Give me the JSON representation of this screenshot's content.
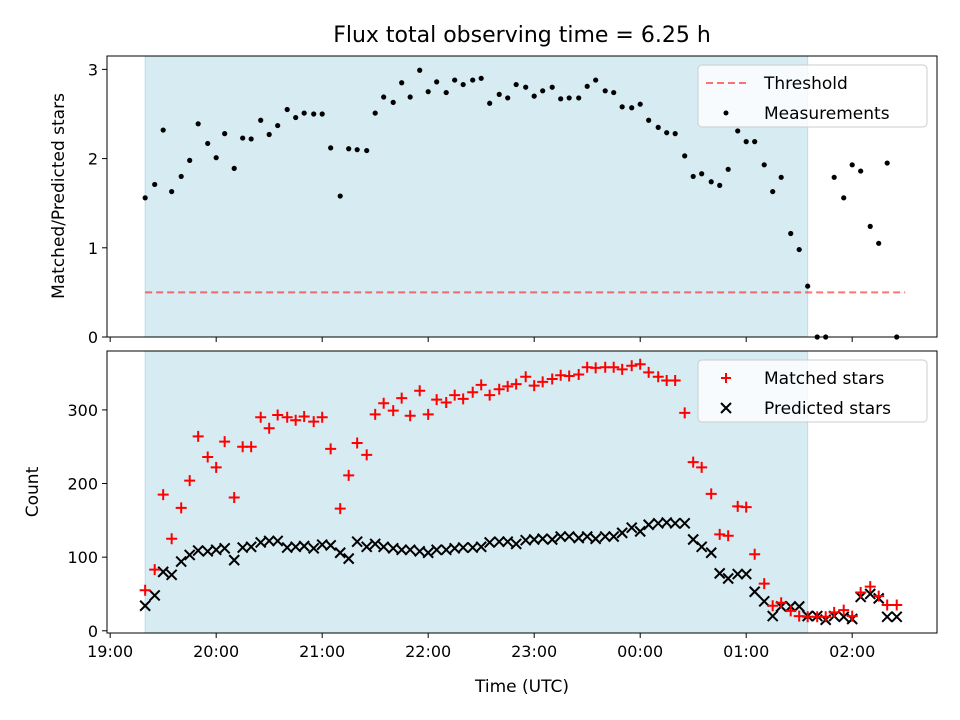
{
  "title": "Flux total observing time = 6.25 h",
  "colors": {
    "shade": "#add8e6",
    "threshold": "#ff0000",
    "measurement": "#000000",
    "matched": "#ff0000",
    "predicted": "#000000"
  },
  "chart_data": [
    {
      "type": "scatter",
      "ylabel": "Matched/Predicted stars",
      "ylim": [
        0,
        3.15
      ],
      "xlim": [
        -0.03,
        7.8
      ],
      "yticks": [
        0,
        1,
        2,
        3
      ],
      "shaded_interval": [
        0.33,
        6.58
      ],
      "legend": [
        "Threshold",
        "Measurements"
      ],
      "legend_position": "top-right",
      "threshold": {
        "name": "Threshold",
        "value": 0.5,
        "x_range": [
          0.33,
          7.5
        ]
      },
      "series": [
        {
          "name": "Measurements",
          "x": [
            0.33,
            0.42,
            0.5,
            0.58,
            0.67,
            0.75,
            0.83,
            0.92,
            1.0,
            1.08,
            1.17,
            1.25,
            1.33,
            1.42,
            1.5,
            1.58,
            1.67,
            1.75,
            1.83,
            1.92,
            2.0,
            2.08,
            2.17,
            2.25,
            2.33,
            2.42,
            2.5,
            2.58,
            2.67,
            2.75,
            2.83,
            2.92,
            3.0,
            3.08,
            3.17,
            3.25,
            3.33,
            3.42,
            3.5,
            3.58,
            3.67,
            3.75,
            3.83,
            3.92,
            4.0,
            4.08,
            4.17,
            4.25,
            4.33,
            4.42,
            4.5,
            4.58,
            4.67,
            4.75,
            4.83,
            4.92,
            5.0,
            5.08,
            5.17,
            5.25,
            5.33,
            5.42,
            5.5,
            5.58,
            5.67,
            5.75,
            5.83,
            5.92,
            6.0,
            6.08,
            6.17,
            6.25,
            6.33,
            6.42,
            6.5,
            6.58,
            6.67,
            6.75,
            6.83,
            6.92,
            7.0,
            7.08,
            7.17,
            7.25,
            7.33,
            7.42
          ],
          "y": [
            1.56,
            1.71,
            2.32,
            1.63,
            1.8,
            1.98,
            2.39,
            2.17,
            2.01,
            2.28,
            1.89,
            2.23,
            2.22,
            2.43,
            2.27,
            2.37,
            2.55,
            2.46,
            2.51,
            2.5,
            2.5,
            2.12,
            1.58,
            2.11,
            2.1,
            2.09,
            2.51,
            2.69,
            2.63,
            2.85,
            2.69,
            2.99,
            2.75,
            2.86,
            2.74,
            2.88,
            2.83,
            2.88,
            2.9,
            2.62,
            2.72,
            2.68,
            2.83,
            2.8,
            2.7,
            2.76,
            2.8,
            2.67,
            2.68,
            2.68,
            2.81,
            2.88,
            2.76,
            2.74,
            2.58,
            2.57,
            2.61,
            2.43,
            2.35,
            2.29,
            2.28,
            2.03,
            1.8,
            1.83,
            1.74,
            1.7,
            1.88,
            2.31,
            2.19,
            2.19,
            1.93,
            1.63,
            1.79,
            1.16,
            0.98,
            0.57,
            0.0,
            0.0,
            1.79,
            1.56,
            1.93,
            1.86,
            1.24,
            1.05,
            1.95,
            0.0
          ]
        }
      ]
    },
    {
      "type": "scatter",
      "title": "",
      "xlabel": "Time (UTC)",
      "ylabel": "Count",
      "ylim": [
        -3,
        380
      ],
      "xlim": [
        -0.03,
        7.8
      ],
      "yticks": [
        0,
        100,
        200,
        300
      ],
      "xticks": [
        "19:00",
        "20:00",
        "21:00",
        "22:00",
        "23:00",
        "00:00",
        "01:00",
        "02:00"
      ],
      "x_tick_positions": [
        0,
        1,
        2,
        3,
        4,
        5,
        6,
        7
      ],
      "shaded_interval": [
        0.33,
        6.58
      ],
      "legend": [
        "Matched stars",
        "Predicted stars"
      ],
      "legend_position": "top-right",
      "series": [
        {
          "name": "Matched stars",
          "marker": "+",
          "x": [
            0.33,
            0.42,
            0.5,
            0.58,
            0.67,
            0.75,
            0.83,
            0.92,
            1.0,
            1.08,
            1.17,
            1.25,
            1.33,
            1.42,
            1.5,
            1.58,
            1.67,
            1.75,
            1.83,
            1.92,
            2.0,
            2.08,
            2.17,
            2.25,
            2.33,
            2.42,
            2.5,
            2.58,
            2.67,
            2.75,
            2.83,
            2.92,
            3.0,
            3.08,
            3.17,
            3.25,
            3.33,
            3.42,
            3.5,
            3.58,
            3.67,
            3.75,
            3.83,
            3.92,
            4.0,
            4.08,
            4.17,
            4.25,
            4.33,
            4.42,
            4.5,
            4.58,
            4.67,
            4.75,
            4.83,
            4.92,
            5.0,
            5.08,
            5.17,
            5.25,
            5.33,
            5.42,
            5.5,
            5.58,
            5.67,
            5.75,
            5.83,
            5.92,
            6.0,
            6.08,
            6.17,
            6.25,
            6.33,
            6.42,
            6.5,
            6.58,
            6.67,
            6.75,
            6.83,
            6.92,
            7.0,
            7.08,
            7.17,
            7.25,
            7.33,
            7.42
          ],
          "y": [
            55,
            83,
            185,
            125,
            167,
            204,
            264,
            236,
            222,
            257,
            181,
            250,
            250,
            290,
            275,
            293,
            290,
            286,
            291,
            284,
            290,
            247,
            166,
            211,
            255,
            239,
            294,
            309,
            299,
            316,
            292,
            326,
            294,
            314,
            310,
            320,
            315,
            324,
            334,
            320,
            328,
            332,
            335,
            345,
            333,
            338,
            342,
            347,
            346,
            348,
            358,
            357,
            358,
            358,
            355,
            360,
            362,
            351,
            345,
            340,
            340,
            296,
            229,
            222,
            186,
            131,
            129,
            169,
            168,
            104,
            64,
            34,
            38,
            27,
            20,
            19,
            19,
            19,
            25,
            28,
            20,
            52,
            60,
            47,
            35,
            35
          ]
        },
        {
          "name": "Predicted stars",
          "marker": "x",
          "x": [
            0.33,
            0.42,
            0.5,
            0.58,
            0.67,
            0.75,
            0.83,
            0.92,
            1.0,
            1.08,
            1.17,
            1.25,
            1.33,
            1.42,
            1.5,
            1.58,
            1.67,
            1.75,
            1.83,
            1.92,
            2.0,
            2.08,
            2.17,
            2.25,
            2.33,
            2.42,
            2.5,
            2.58,
            2.67,
            2.75,
            2.83,
            2.92,
            3.0,
            3.08,
            3.17,
            3.25,
            3.33,
            3.42,
            3.5,
            3.58,
            3.67,
            3.75,
            3.83,
            3.92,
            4.0,
            4.08,
            4.17,
            4.25,
            4.33,
            4.42,
            4.5,
            4.58,
            4.67,
            4.75,
            4.83,
            4.92,
            5.0,
            5.08,
            5.17,
            5.25,
            5.33,
            5.42,
            5.5,
            5.58,
            5.67,
            5.75,
            5.83,
            5.92,
            6.0,
            6.08,
            6.17,
            6.25,
            6.33,
            6.42,
            6.5,
            6.58,
            6.67,
            6.75,
            6.83,
            6.92,
            7.0,
            7.08,
            7.17,
            7.25,
            7.33,
            7.42
          ],
          "y": [
            34,
            48,
            80,
            76,
            94,
            103,
            109,
            108,
            110,
            112,
            96,
            113,
            114,
            120,
            122,
            122,
            113,
            114,
            115,
            112,
            117,
            116,
            106,
            98,
            121,
            114,
            118,
            114,
            112,
            110,
            110,
            108,
            106,
            110,
            110,
            112,
            113,
            113,
            114,
            120,
            121,
            121,
            118,
            123,
            124,
            125,
            124,
            128,
            128,
            126,
            128,
            125,
            128,
            128,
            133,
            140,
            135,
            144,
            146,
            147,
            146,
            146,
            124,
            114,
            106,
            78,
            71,
            77,
            77,
            53,
            40,
            20,
            33,
            33,
            33,
            20,
            20,
            15,
            20,
            19,
            16,
            46,
            50,
            44,
            19,
            19
          ]
        }
      ]
    }
  ]
}
